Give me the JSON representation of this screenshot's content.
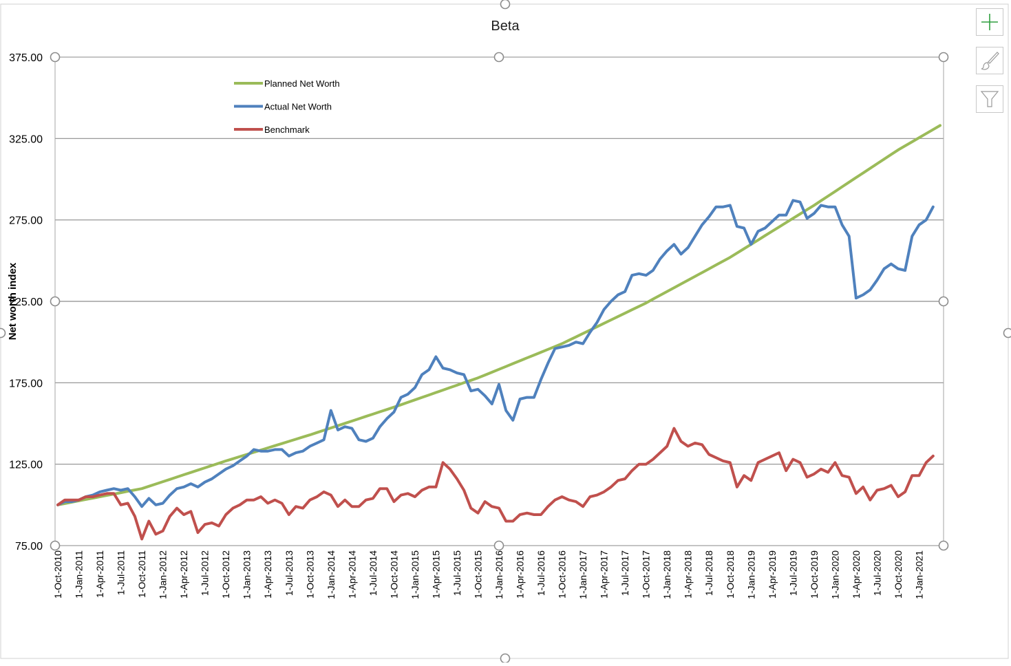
{
  "chart_data": {
    "type": "line",
    "title": "Beta",
    "xlabel": "",
    "ylabel": "Net worth index",
    "ylim": [
      75,
      375
    ],
    "y_ticks": [
      "75.00",
      "125.00",
      "175.00",
      "225.00",
      "275.00",
      "325.00",
      "375.00"
    ],
    "x_ticks": [
      "1-Oct-2010",
      "1-Jan-2011",
      "1-Apr-2011",
      "1-Jul-2011",
      "1-Oct-2011",
      "1-Jan-2012",
      "1-Apr-2012",
      "1-Jul-2012",
      "1-Oct-2012",
      "1-Jan-2013",
      "1-Apr-2013",
      "1-Jul-2013",
      "1-Oct-2013",
      "1-Jan-2014",
      "1-Apr-2014",
      "1-Jul-2014",
      "1-Oct-2014",
      "1-Jan-2015",
      "1-Apr-2015",
      "1-Jul-2015",
      "1-Oct-2015",
      "1-Jan-2016",
      "1-Apr-2016",
      "1-Jul-2016",
      "1-Oct-2016",
      "1-Jan-2017",
      "1-Apr-2017",
      "1-Jul-2017",
      "1-Oct-2017",
      "1-Jan-2018",
      "1-Apr-2018",
      "1-Jul-2018",
      "1-Oct-2018",
      "1-Jan-2019",
      "1-Apr-2019",
      "1-Jul-2019",
      "1-Oct-2019",
      "1-Jan-2020",
      "1-Apr-2020",
      "1-Jul-2020",
      "1-Oct-2020",
      "1-Jan-2021"
    ],
    "x_start": "1-Oct-2010",
    "x_end": "1-Apr-2021",
    "grid": true,
    "legend_position": "top-left",
    "series": [
      {
        "name": "Planned Net Worth",
        "color": "#9BBB59",
        "anchors": [
          [
            "1-Oct-2010",
            100
          ],
          [
            "1-Oct-2011",
            110
          ],
          [
            "1-Oct-2012",
            127
          ],
          [
            "1-Oct-2013",
            143
          ],
          [
            "1-Oct-2014",
            160
          ],
          [
            "1-Oct-2015",
            178
          ],
          [
            "1-Oct-2016",
            199
          ],
          [
            "1-Oct-2017",
            224
          ],
          [
            "1-Oct-2018",
            252
          ],
          [
            "1-Oct-2019",
            284
          ],
          [
            "1-Oct-2020",
            318
          ],
          [
            "1-Apr-2021",
            333
          ]
        ]
      },
      {
        "name": "Actual Net Worth",
        "color": "#4F81BD",
        "values": [
          100,
          102,
          102,
          103,
          105,
          106,
          108,
          109,
          110,
          109,
          110,
          105,
          99,
          104,
          100,
          101,
          106,
          110,
          111,
          113,
          111,
          114,
          116,
          119,
          122,
          124,
          127,
          130,
          134,
          133,
          133,
          134,
          134,
          130,
          132,
          133,
          136,
          138,
          140,
          158,
          146,
          148,
          147,
          140,
          139,
          141,
          148,
          153,
          157,
          166,
          168,
          172,
          180,
          183,
          191,
          184,
          183,
          181,
          180,
          170,
          171,
          167,
          162,
          174,
          158,
          152,
          165,
          166,
          166,
          177,
          187,
          196,
          197,
          198,
          200,
          199,
          206,
          212,
          220,
          225,
          229,
          231,
          241,
          242,
          241,
          244,
          251,
          256,
          260,
          254,
          258,
          265,
          272,
          277,
          283,
          283,
          284,
          271,
          270,
          260,
          268,
          270,
          274,
          278,
          278,
          287,
          286,
          276,
          279,
          284,
          283,
          283,
          272,
          265,
          227,
          229,
          232,
          238,
          245,
          248,
          245,
          244,
          265,
          272,
          275,
          283
        ]
      },
      {
        "name": "Benchmark",
        "color": "#C0504D",
        "values": [
          100,
          103,
          103,
          103,
          105,
          105,
          106,
          107,
          107,
          100,
          101,
          93,
          79,
          90,
          82,
          84,
          93,
          98,
          94,
          96,
          83,
          88,
          89,
          87,
          94,
          98,
          100,
          103,
          103,
          105,
          101,
          103,
          101,
          94,
          99,
          98,
          103,
          105,
          108,
          106,
          99,
          103,
          99,
          99,
          103,
          104,
          110,
          110,
          102,
          106,
          107,
          105,
          109,
          111,
          111,
          126,
          122,
          116,
          109,
          98,
          95,
          102,
          99,
          98,
          90,
          90,
          94,
          95,
          94,
          94,
          99,
          103,
          105,
          103,
          102,
          99,
          105,
          106,
          108,
          111,
          115,
          116,
          121,
          125,
          125,
          128,
          132,
          136,
          147,
          139,
          136,
          138,
          137,
          131,
          129,
          127,
          126,
          111,
          118,
          115,
          126,
          128,
          130,
          132,
          121,
          128,
          126,
          117,
          119,
          122,
          120,
          126,
          118,
          117,
          107,
          111,
          103,
          109,
          110,
          112,
          105,
          108,
          118,
          118,
          126,
          130
        ]
      }
    ]
  }
}
